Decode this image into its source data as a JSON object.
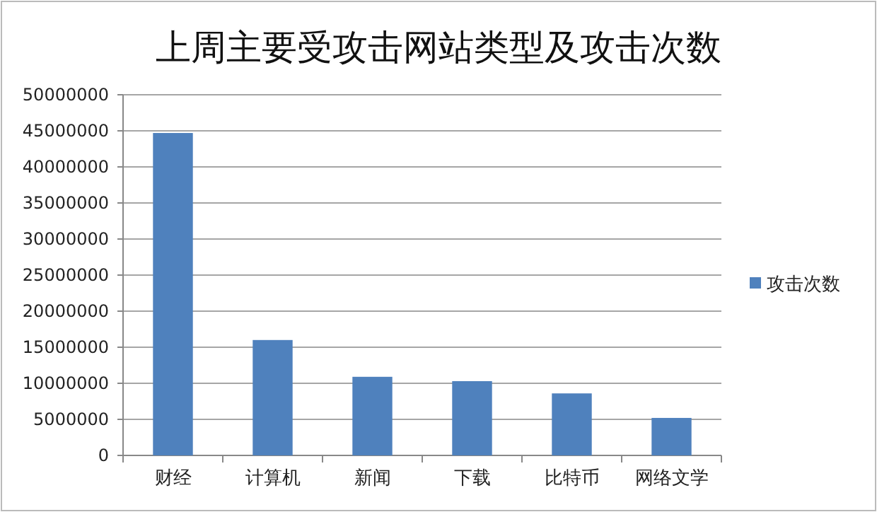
{
  "chart_data": {
    "type": "bar",
    "title": "上周主要受攻击网站类型及攻击次数",
    "categories": [
      "财经",
      "计算机",
      "新闻",
      "下载",
      "比特币",
      "网络文学"
    ],
    "series": [
      {
        "name": "攻击次数",
        "color": "#4f81bd",
        "values": [
          44700000,
          16000000,
          10900000,
          10300000,
          8600000,
          5200000
        ]
      }
    ],
    "ylim": [
      0,
      50000000
    ],
    "yticks": [
      0,
      5000000,
      10000000,
      15000000,
      20000000,
      25000000,
      30000000,
      35000000,
      40000000,
      45000000,
      50000000
    ],
    "grid": "y",
    "legend": "right"
  }
}
